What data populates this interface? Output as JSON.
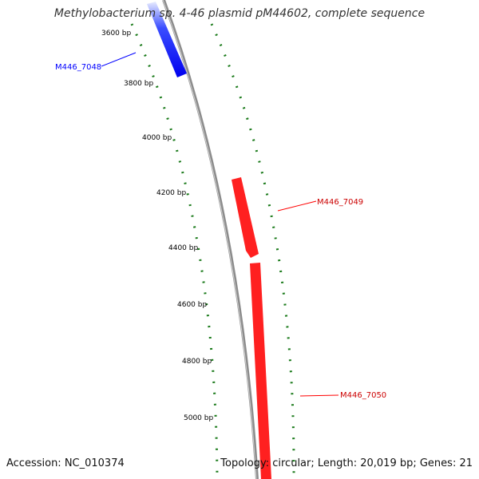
{
  "title": "Methylobacterium sp. 4-46 plasmid pM44602, complete sequence",
  "footer": {
    "accession": "Accession: NC_010374",
    "summary": "Topology: circular; Length: 20,019 bp; Genes: 21"
  },
  "colors": {
    "backbone": "#8c8c8c",
    "forward_gene": "#0000ff",
    "reverse_gene": "#ff0000",
    "tick": "#1a7a1a",
    "label_text": "#000000"
  },
  "ticks": [
    "3600 bp",
    "3800 bp",
    "4000 bp",
    "4200 bp",
    "4400 bp",
    "4600 bp",
    "4800 bp",
    "5000 bp"
  ],
  "genes": [
    {
      "name": "M446_7048",
      "strand": "forward",
      "color": "#0000ff"
    },
    {
      "name": "M446_7049",
      "strand": "reverse",
      "color": "#ff0000"
    },
    {
      "name": "M446_7050",
      "strand": "reverse",
      "color": "#ff0000"
    }
  ]
}
